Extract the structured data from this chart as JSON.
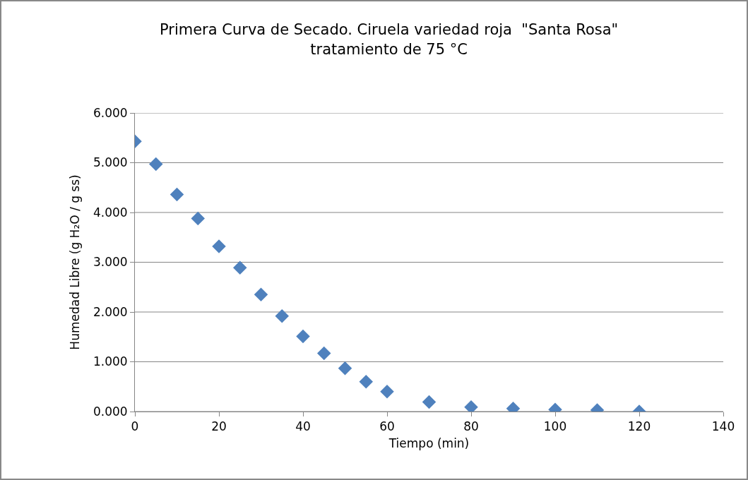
{
  "chart_data": {
    "type": "scatter",
    "title": "Primera Curva de Secado. Ciruela variedad roja  \"Santa Rosa\"\ntratamiento de 75 °C",
    "xlabel": "Tiempo (min)",
    "ylabel": "Humedad Libre (g H₂O / g ss)",
    "x": [
      0,
      5,
      10,
      15,
      20,
      25,
      30,
      35,
      40,
      45,
      50,
      55,
      60,
      70,
      80,
      90,
      100,
      110,
      120
    ],
    "series": [
      {
        "color": "#4f81bd",
        "values": [
          5.43,
          4.97,
          4.36,
          3.88,
          3.32,
          2.89,
          2.35,
          1.92,
          1.51,
          1.17,
          0.87,
          0.6,
          0.4,
          0.19,
          0.09,
          0.06,
          0.04,
          0.03,
          0.0
        ]
      }
    ],
    "xlim": [
      0,
      140
    ],
    "xticks": [
      0,
      20,
      40,
      60,
      80,
      100,
      120,
      140
    ],
    "ylim": [
      0,
      6
    ],
    "yticks": [
      {
        "value": 0,
        "label": "0.000"
      },
      {
        "value": 1,
        "label": "1.000"
      },
      {
        "value": 2,
        "label": "2.000"
      },
      {
        "value": 3,
        "label": "3.000"
      },
      {
        "value": 4,
        "label": "4.000"
      },
      {
        "value": 5,
        "label": "5.000"
      },
      {
        "value": 6,
        "label": "6.000"
      }
    ],
    "grid": "y",
    "marker": "diamond"
  }
}
